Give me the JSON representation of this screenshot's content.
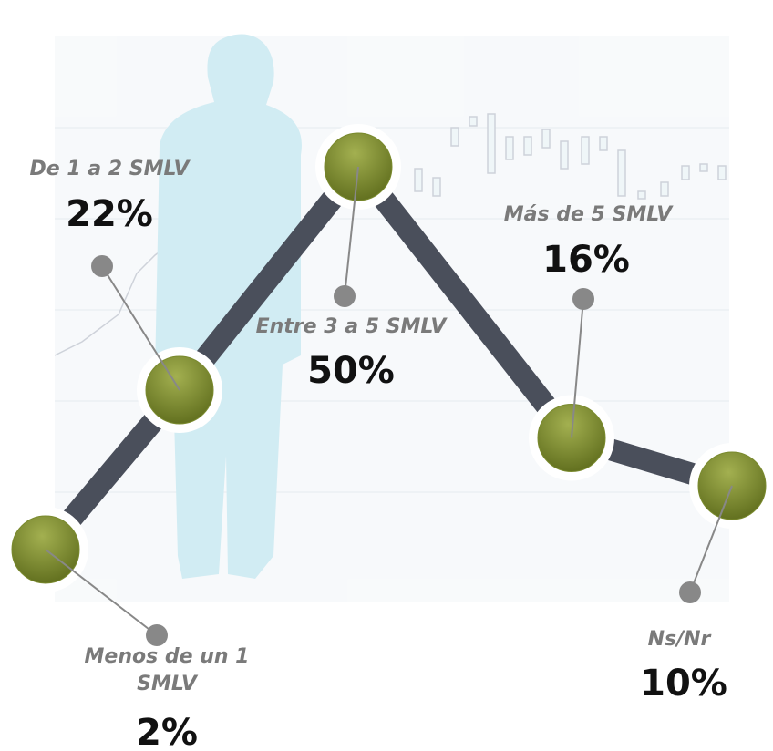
{
  "chart_data": {
    "type": "line",
    "categories": [
      "Menos de un 1 SMLV",
      "De 1 a 2 SMLV",
      "Entre 3 a 5 SMLV",
      "Más de 5 SMLV",
      "Ns/Nr"
    ],
    "values": [
      2,
      22,
      50,
      16,
      10
    ],
    "value_labels": [
      "2%",
      "22%",
      "50%",
      "16%",
      "10%"
    ],
    "color": "#4a4f5b",
    "marker_color": "#7a8a2e"
  }
}
